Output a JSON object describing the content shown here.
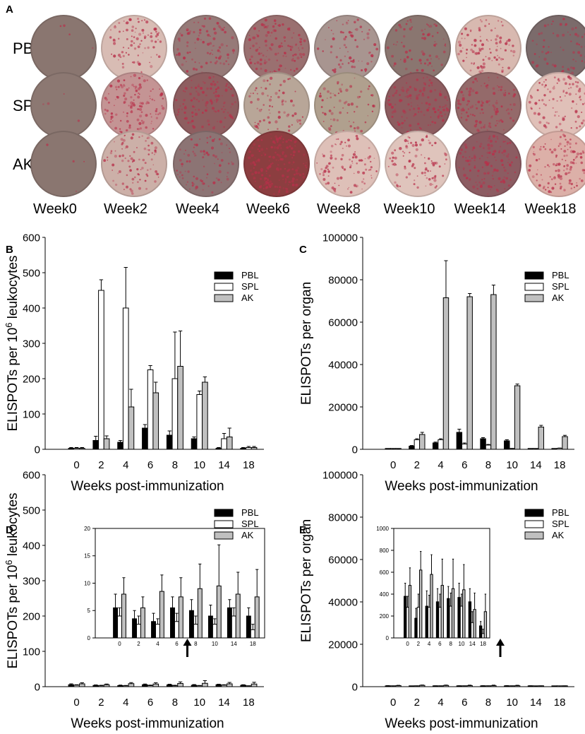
{
  "panel_a": {
    "label": "A",
    "row_labels": [
      "PBL",
      "SPL",
      "AK"
    ],
    "week_labels": [
      "Week0",
      "Week2",
      "Week4",
      "Week6",
      "Week8",
      "Week10",
      "Week14",
      "Week18"
    ],
    "well_colors": [
      [
        "#8a7670",
        "#d8bcb4",
        "#967a78",
        "#9a7070",
        "#a89590",
        "#8a7670",
        "#d8b9b0",
        "#7b6b6b"
      ],
      [
        "#8c7872",
        "#c49494",
        "#8e5e60",
        "#b8a698",
        "#b0a08e",
        "#8d5d60",
        "#946a6a",
        "#e0c0b8"
      ],
      [
        "#8a7670",
        "#ccb0a8",
        "#8c7474",
        "#8c3e40",
        "#dec0b8",
        "#dfc4bc",
        "#8c5c62",
        "#dcb0a8"
      ]
    ],
    "spot_color": "#b8304a"
  },
  "chart_data": [
    {
      "panel": "B",
      "type": "bar",
      "title": "",
      "xlabel": "Weeks post-immunization",
      "ylabel": "ELISPOTs per 10^6 leukocytes",
      "ylabel_main": "ELISPOTs per 10",
      "ylabel_sup": "6",
      "ylabel_tail": " leukocytes",
      "categories": [
        "0",
        "2",
        "4",
        "6",
        "8",
        "10",
        "14",
        "18"
      ],
      "ylim": [
        0,
        600
      ],
      "yticks": [
        "0",
        "100",
        "200",
        "300",
        "400",
        "500",
        "600"
      ],
      "legend_position": "top-right",
      "series": [
        {
          "name": "PBL",
          "values": [
            3,
            25,
            20,
            60,
            40,
            30,
            3,
            3
          ],
          "errors": [
            2,
            12,
            5,
            10,
            12,
            5,
            2,
            2
          ],
          "color": "#000000"
        },
        {
          "name": "SPL",
          "values": [
            3,
            450,
            400,
            225,
            200,
            155,
            30,
            5
          ],
          "errors": [
            2,
            30,
            115,
            12,
            132,
            10,
            15,
            3
          ],
          "color": "#ffffff"
        },
        {
          "name": "AK",
          "values": [
            3,
            30,
            120,
            160,
            235,
            190,
            35,
            5
          ],
          "errors": [
            2,
            8,
            50,
            30,
            100,
            15,
            25,
            3
          ],
          "color": "#c0c0c0"
        }
      ]
    },
    {
      "panel": "C",
      "type": "bar",
      "title": "",
      "xlabel": "Weeks post-immunization",
      "ylabel": "ELISPOTs per organ",
      "categories": [
        "0",
        "2",
        "4",
        "6",
        "8",
        "10",
        "14",
        "18"
      ],
      "ylim": [
        0,
        100000
      ],
      "yticks": [
        "0",
        "20000",
        "40000",
        "60000",
        "80000",
        "100000"
      ],
      "legend_position": "top-right",
      "series": [
        {
          "name": "PBL",
          "values": [
            100,
            1500,
            3000,
            8000,
            5000,
            4000,
            100,
            100
          ],
          "errors": [
            50,
            300,
            400,
            1500,
            500,
            500,
            50,
            50
          ],
          "color": "#000000"
        },
        {
          "name": "SPL",
          "values": [
            100,
            4500,
            4500,
            2500,
            2000,
            300,
            200,
            500
          ],
          "errors": [
            50,
            500,
            500,
            500,
            300,
            100,
            50,
            100
          ],
          "color": "#ffffff"
        },
        {
          "name": "AK",
          "values": [
            100,
            7000,
            71500,
            72000,
            73000,
            30000,
            10500,
            6000
          ],
          "errors": [
            50,
            1000,
            17500,
            1500,
            4500,
            800,
            800,
            600
          ],
          "color": "#c0c0c0"
        }
      ]
    },
    {
      "panel": "D",
      "type": "bar",
      "title": "",
      "xlabel": "Weeks post-immunization",
      "ylabel": "ELISPOTs per 10^6 leukocytes",
      "ylabel_main": "ELISPOTs per 10",
      "ylabel_sup": "6",
      "ylabel_tail": " leukocytes",
      "categories": [
        "0",
        "2",
        "4",
        "6",
        "8",
        "10",
        "14",
        "18"
      ],
      "ylim": [
        0,
        600
      ],
      "yticks": [
        "0",
        "100",
        "200",
        "300",
        "400",
        "500",
        "600"
      ],
      "legend_position": "top-right",
      "annotation": "up-arrow above week 8-10",
      "series": [
        {
          "name": "PBL",
          "values": [
            5.5,
            3.5,
            3.0,
            5.5,
            5.0,
            4.0,
            5.5,
            4.0
          ],
          "errors": [
            2.5,
            1.5,
            1.5,
            2.0,
            2.0,
            2.0,
            1.5,
            1.5
          ],
          "color": "#000000"
        },
        {
          "name": "SPL",
          "values": [
            4.0,
            2.5,
            2.5,
            3.0,
            2.5,
            2.5,
            4.0,
            1.5
          ],
          "errors": [
            1.5,
            1.5,
            1.0,
            1.5,
            1.5,
            1.0,
            1.5,
            1.0
          ],
          "color": "#ffffff"
        },
        {
          "name": "AK",
          "values": [
            8.0,
            5.5,
            8.5,
            7.5,
            9.0,
            9.5,
            8.0,
            7.5
          ],
          "errors": [
            3.0,
            2.0,
            3.0,
            3.5,
            4.5,
            7.5,
            4.0,
            5.0
          ],
          "color": "#c0c0c0"
        }
      ],
      "inset": {
        "ylim": [
          0,
          20
        ],
        "yticks": [
          "0",
          "5",
          "10",
          "15",
          "20"
        ],
        "categories": [
          "0",
          "2",
          "4",
          "6",
          "8",
          "10",
          "14",
          "18"
        ]
      }
    },
    {
      "panel": "E",
      "type": "bar",
      "title": "",
      "xlabel": "Weeks post-immunization",
      "ylabel": "ELISPOTs per organ",
      "categories": [
        "0",
        "2",
        "4",
        "6",
        "8",
        "10",
        "14",
        "18"
      ],
      "ylim": [
        0,
        100000
      ],
      "yticks": [
        "0",
        "20000",
        "40000",
        "60000",
        "80000",
        "100000"
      ],
      "legend_position": "top-right",
      "annotation": "up-arrow above week 8-10",
      "series": [
        {
          "name": "PBL",
          "values": [
            380,
            180,
            290,
            330,
            360,
            370,
            330,
            110
          ],
          "errors": [
            120,
            90,
            140,
            120,
            110,
            130,
            120,
            40
          ],
          "color": "#000000"
        },
        {
          "name": "SPL",
          "values": [
            280,
            280,
            280,
            280,
            290,
            290,
            140,
            40
          ],
          "errors": [
            100,
            120,
            110,
            120,
            120,
            110,
            100,
            40
          ],
          "color": "#ffffff"
        },
        {
          "name": "AK",
          "values": [
            480,
            620,
            580,
            480,
            450,
            440,
            260,
            240
          ],
          "errors": [
            160,
            170,
            180,
            240,
            270,
            230,
            150,
            160
          ],
          "color": "#c0c0c0"
        }
      ],
      "inset": {
        "ylim": [
          0,
          1000
        ],
        "yticks": [
          "0",
          "200",
          "400",
          "600",
          "800",
          "1000"
        ],
        "categories": [
          "0",
          "2",
          "4",
          "6",
          "8",
          "10",
          "14",
          "18"
        ]
      }
    }
  ]
}
